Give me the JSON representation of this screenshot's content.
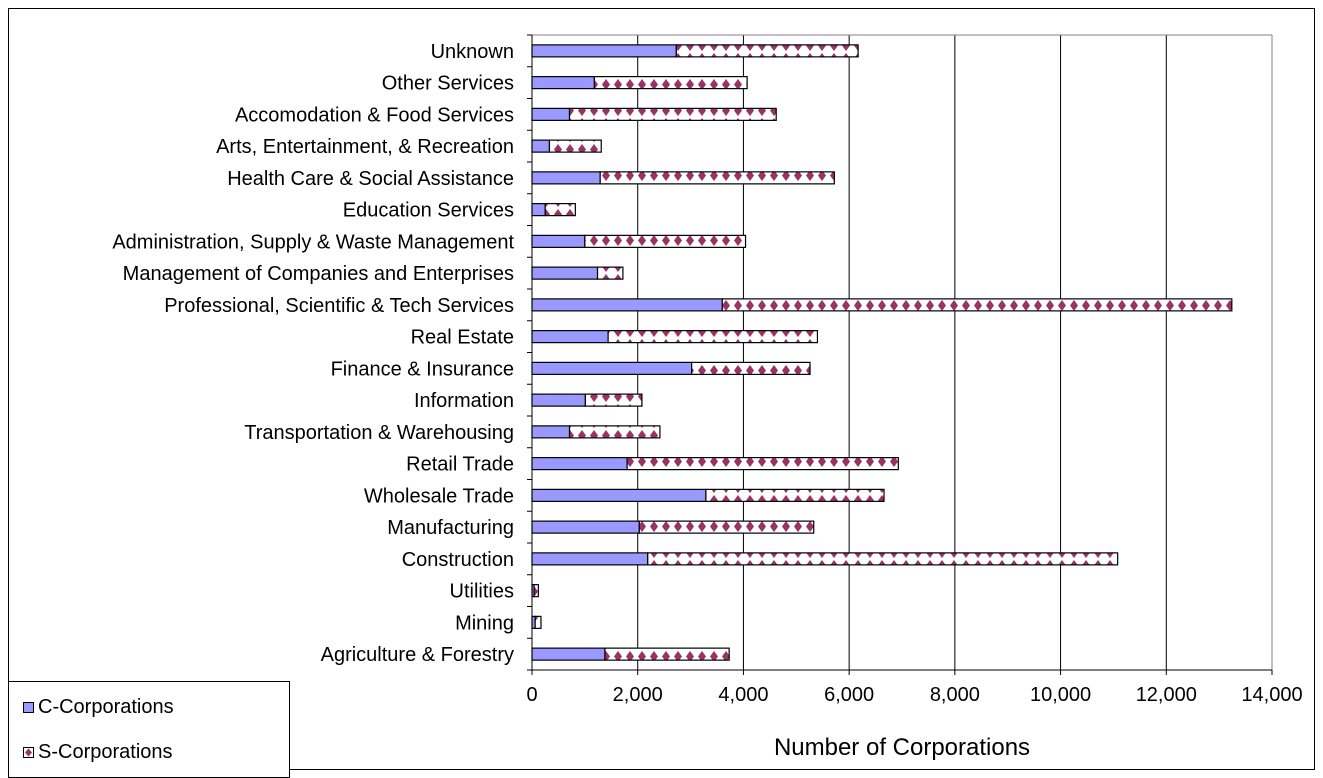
{
  "chart_data": {
    "type": "bar",
    "orientation": "horizontal",
    "stacked": true,
    "title": "",
    "xlabel": "Number of Corporations",
    "ylabel": "",
    "xlim": [
      0,
      14000
    ],
    "x_ticks": [
      "0",
      "2,000",
      "4,000",
      "6,000",
      "8,000",
      "10,000",
      "12,000",
      "14,000"
    ],
    "grid": "vertical",
    "legend_position": "bottom-left",
    "categories": [
      "Unknown",
      "Other Services",
      "Accomodation & Food Services",
      "Arts, Entertainment, & Recreation",
      "Health Care & Social Assistance",
      "Education Services",
      "Administration, Supply & Waste Management",
      "Management of Companies and Enterprises",
      "Professional, Scientific & Tech Services",
      "Real Estate",
      "Finance & Insurance",
      "Information",
      "Transportation & Warehousing",
      "Retail Trade",
      "Wholesale Trade",
      "Manufacturing",
      "Construction",
      "Utilities",
      "Mining",
      "Agriculture & Forestry"
    ],
    "series": [
      {
        "name": "C-Corporations",
        "color": "#9999ff",
        "values": [
          2730,
          1180,
          710,
          330,
          1290,
          250,
          1000,
          1240,
          3600,
          1440,
          3020,
          1010,
          710,
          1800,
          3290,
          2030,
          2190,
          40,
          60,
          1380
        ]
      },
      {
        "name": "S-Corporations",
        "color": "#993366",
        "values": [
          3440,
          2890,
          3910,
          980,
          4430,
          570,
          3040,
          480,
          9640,
          3960,
          2240,
          1070,
          1710,
          5130,
          3370,
          3300,
          8890,
          80,
          110,
          2350
        ]
      }
    ]
  }
}
